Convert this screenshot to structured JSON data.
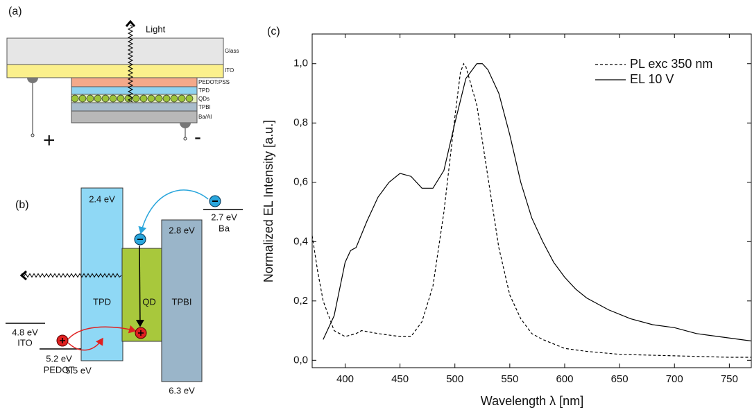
{
  "panel_a": {
    "label": "(a)",
    "light": "Light",
    "layers": [
      "Glass",
      "ITO",
      "PEDOT:PSS",
      "TPD",
      "QDs",
      "TPBI",
      "Ba/Al"
    ],
    "plus": "+",
    "minus": "-"
  },
  "panel_b": {
    "label": "(b)",
    "tpd_level": "2.4 eV",
    "ba_level": "2.7 eV",
    "ba": "Ba",
    "tpbi_level": "2.8 eV",
    "tpd": "TPD",
    "qd": "QD",
    "tpbi": "TPBI",
    "ito_level": "4.8 eV",
    "ito": "ITO",
    "pedot_level": "5.2 eV",
    "pedot": "PEDOT",
    "tpd_low": "5.5 eV",
    "tpbi_low": "6.3 eV"
  },
  "chart_data": {
    "type": "line",
    "panel_label": "(c)",
    "x_label": "Wavelength λ [nm]",
    "y_label": "Normalized EL Intensity [a.u.]",
    "xlim": [
      370,
      770
    ],
    "ylim": [
      -0.025,
      1.1
    ],
    "xticks": [
      400,
      450,
      500,
      550,
      600,
      650,
      700,
      750
    ],
    "yticks": [
      {
        "value": 0,
        "label": "0,0"
      },
      {
        "value": 0.2,
        "label": "0,2"
      },
      {
        "value": 0.4,
        "label": "0,4"
      },
      {
        "value": 0.6,
        "label": "0,6"
      },
      {
        "value": 0.8,
        "label": "0,8"
      },
      {
        "value": 1.0,
        "label": "1,0"
      }
    ],
    "series": [
      {
        "name": "PL exc 350 nm",
        "color": "#000000",
        "dash": true,
        "x": [
          370,
          375,
          380,
          390,
          400,
          410,
          415,
          430,
          450,
          460,
          470,
          480,
          490,
          500,
          505,
          508,
          510,
          520,
          530,
          540,
          550,
          560,
          570,
          580,
          600,
          620,
          650,
          700,
          750,
          770
        ],
        "values": [
          0.42,
          0.3,
          0.2,
          0.1,
          0.08,
          0.09,
          0.1,
          0.09,
          0.08,
          0.08,
          0.13,
          0.25,
          0.5,
          0.82,
          0.97,
          1.0,
          0.99,
          0.86,
          0.62,
          0.38,
          0.22,
          0.14,
          0.09,
          0.07,
          0.04,
          0.03,
          0.02,
          0.015,
          0.01,
          0.01
        ]
      },
      {
        "name": "EL 10 V",
        "color": "#000000",
        "dash": false,
        "x": [
          380,
          390,
          400,
          405,
          410,
          420,
          430,
          440,
          450,
          460,
          470,
          480,
          490,
          500,
          510,
          520,
          525,
          530,
          540,
          550,
          560,
          570,
          580,
          590,
          600,
          610,
          620,
          640,
          660,
          680,
          700,
          720,
          740,
          760,
          770
        ],
        "values": [
          0.07,
          0.15,
          0.33,
          0.37,
          0.38,
          0.47,
          0.55,
          0.6,
          0.63,
          0.62,
          0.58,
          0.58,
          0.64,
          0.8,
          0.95,
          1.0,
          1.0,
          0.98,
          0.9,
          0.76,
          0.6,
          0.48,
          0.4,
          0.33,
          0.28,
          0.24,
          0.21,
          0.17,
          0.14,
          0.12,
          0.11,
          0.09,
          0.08,
          0.07,
          0.065
        ]
      }
    ]
  }
}
